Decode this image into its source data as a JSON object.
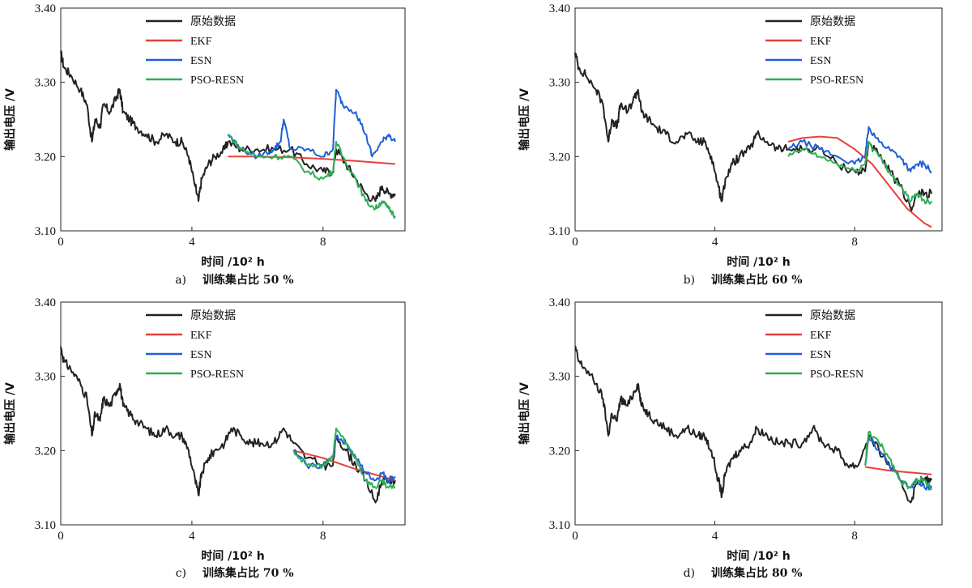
{
  "chart_data": [
    {
      "type": "line",
      "panel_letter": "a)",
      "caption": "训练集占比 50 %",
      "xlabel": "时间 /10² h",
      "ylabel": "输出电压 /V",
      "xlim": [
        0,
        10.5
      ],
      "ylim": [
        3.1,
        3.4
      ],
      "xticks": [
        {
          "v": 0,
          "label": "0"
        },
        {
          "v": 4,
          "label": "4"
        },
        {
          "v": 8,
          "label": "8"
        }
      ],
      "yticks": [
        {
          "v": 3.1,
          "label": "3.10"
        },
        {
          "v": 3.2,
          "label": "3.20"
        },
        {
          "v": 3.3,
          "label": "3.30"
        },
        {
          "v": 3.4,
          "label": "3.40"
        }
      ],
      "legend_position": "top-left",
      "series": [
        {
          "name": "原始数据",
          "color": "#222222",
          "x": [
            0,
            0.1,
            0.3,
            0.6,
            0.8,
            0.95,
            1.05,
            1.2,
            1.3,
            1.5,
            1.7,
            1.8,
            1.9,
            2.1,
            2.3,
            2.6,
            2.9,
            3.2,
            3.5,
            3.7,
            3.9,
            4.1,
            4.2,
            4.3,
            4.5,
            4.7,
            5.0,
            5.1
          ],
          "y": [
            3.34,
            3.32,
            3.31,
            3.29,
            3.27,
            3.22,
            3.25,
            3.24,
            3.27,
            3.26,
            3.28,
            3.29,
            3.26,
            3.25,
            3.24,
            3.23,
            3.22,
            3.23,
            3.22,
            3.22,
            3.2,
            3.16,
            3.14,
            3.17,
            3.19,
            3.2,
            3.21,
            3.22
          ]
        },
        {
          "name": "EKF",
          "color": "#e8403a",
          "x": [
            5.1,
            6.0,
            7.0,
            8.0,
            9.0,
            10.2
          ],
          "y": [
            3.2,
            3.2,
            3.199,
            3.197,
            3.194,
            3.19
          ]
        },
        {
          "name": "ESN",
          "color": "#1f5fd6",
          "x": [
            5.1,
            5.5,
            6.0,
            6.5,
            6.7,
            6.8,
            7.0,
            7.5,
            8.0,
            8.3,
            8.4,
            8.6,
            9.0,
            9.3,
            9.5,
            9.8,
            10.0,
            10.2
          ],
          "y": [
            3.23,
            3.21,
            3.2,
            3.21,
            3.22,
            3.25,
            3.21,
            3.21,
            3.2,
            3.21,
            3.29,
            3.27,
            3.26,
            3.23,
            3.2,
            3.22,
            3.23,
            3.22
          ]
        },
        {
          "name": "PSO-RESN",
          "color": "#2fae55",
          "x": [
            5.1,
            5.5,
            6.0,
            6.5,
            7.0,
            7.5,
            8.0,
            8.3,
            8.4,
            8.6,
            9.0,
            9.3,
            9.6,
            9.8,
            10.0,
            10.2
          ],
          "y": [
            3.23,
            3.21,
            3.2,
            3.2,
            3.2,
            3.18,
            3.17,
            3.18,
            3.22,
            3.2,
            3.17,
            3.14,
            3.13,
            3.14,
            3.13,
            3.12
          ]
        }
      ],
      "raw_tail": {
        "x": [
          5.1,
          5.5,
          6.0,
          6.5,
          7.0,
          7.5,
          8.0,
          8.3,
          8.4,
          8.7,
          9.0,
          9.3,
          9.6,
          9.8,
          10.0,
          10.2
        ],
        "y": [
          3.23,
          3.21,
          3.21,
          3.21,
          3.21,
          3.19,
          3.18,
          3.18,
          3.21,
          3.19,
          3.17,
          3.15,
          3.14,
          3.16,
          3.15,
          3.15
        ]
      }
    },
    {
      "type": "line",
      "panel_letter": "b)",
      "caption": "训练集占比 60 %",
      "xlabel": "时间 /10² h",
      "ylabel": "输出电压 /V",
      "xlim": [
        0,
        10.5
      ],
      "ylim": [
        3.1,
        3.4
      ],
      "xticks": [
        {
          "v": 0,
          "label": "0"
        },
        {
          "v": 4,
          "label": "4"
        },
        {
          "v": 8,
          "label": "8"
        }
      ],
      "yticks": [
        {
          "v": 3.1,
          "label": "3.10"
        },
        {
          "v": 3.2,
          "label": "3.20"
        },
        {
          "v": 3.3,
          "label": "3.30"
        },
        {
          "v": 3.4,
          "label": "3.40"
        }
      ],
      "legend_position": "top-right",
      "series": [
        {
          "name": "原始数据",
          "color": "#222222",
          "x": [
            0,
            0.1,
            0.3,
            0.6,
            0.8,
            0.95,
            1.05,
            1.2,
            1.3,
            1.5,
            1.7,
            1.8,
            1.9,
            2.1,
            2.3,
            2.6,
            2.9,
            3.2,
            3.5,
            3.7,
            3.9,
            4.1,
            4.2,
            4.3,
            4.5,
            4.7,
            5.0,
            5.2,
            5.5,
            5.8,
            6.1
          ],
          "y": [
            3.34,
            3.32,
            3.31,
            3.29,
            3.27,
            3.22,
            3.25,
            3.24,
            3.27,
            3.26,
            3.28,
            3.29,
            3.26,
            3.25,
            3.24,
            3.23,
            3.22,
            3.23,
            3.22,
            3.22,
            3.2,
            3.16,
            3.14,
            3.17,
            3.19,
            3.2,
            3.21,
            3.23,
            3.22,
            3.21,
            3.21
          ]
        },
        {
          "name": "EKF",
          "color": "#e8403a",
          "x": [
            6.1,
            6.5,
            7.0,
            7.5,
            8.0,
            8.5,
            9.0,
            9.5,
            10.0,
            10.2
          ],
          "y": [
            3.22,
            3.225,
            3.227,
            3.225,
            3.21,
            3.19,
            3.16,
            3.13,
            3.11,
            3.105
          ]
        },
        {
          "name": "ESN",
          "color": "#1f5fd6",
          "x": [
            6.1,
            6.5,
            7.0,
            7.5,
            8.0,
            8.3,
            8.4,
            8.7,
            9.0,
            9.3,
            9.6,
            9.8,
            10.0,
            10.2
          ],
          "y": [
            3.21,
            3.22,
            3.21,
            3.2,
            3.19,
            3.2,
            3.24,
            3.22,
            3.21,
            3.2,
            3.18,
            3.19,
            3.19,
            3.18
          ]
        },
        {
          "name": "PSO-RESN",
          "color": "#2fae55",
          "x": [
            6.1,
            6.5,
            7.0,
            7.5,
            8.0,
            8.3,
            8.4,
            8.7,
            9.0,
            9.3,
            9.6,
            9.8,
            10.0,
            10.2
          ],
          "y": [
            3.2,
            3.21,
            3.2,
            3.19,
            3.18,
            3.19,
            3.22,
            3.2,
            3.18,
            3.16,
            3.14,
            3.15,
            3.14,
            3.14
          ]
        }
      ],
      "raw_tail": {
        "x": [
          6.1,
          6.5,
          7.0,
          7.5,
          8.0,
          8.3,
          8.4,
          8.7,
          9.0,
          9.3,
          9.6,
          9.8,
          10.0,
          10.2
        ],
        "y": [
          3.21,
          3.21,
          3.21,
          3.19,
          3.18,
          3.18,
          3.22,
          3.2,
          3.18,
          3.16,
          3.13,
          3.15,
          3.15,
          3.15
        ]
      }
    },
    {
      "type": "line",
      "panel_letter": "c)",
      "caption": "训练集占比 70 %",
      "xlabel": "时间 /10² h",
      "ylabel": "输出电压 /V",
      "xlim": [
        0,
        10.5
      ],
      "ylim": [
        3.1,
        3.4
      ],
      "xticks": [
        {
          "v": 0,
          "label": "0"
        },
        {
          "v": 4,
          "label": "4"
        },
        {
          "v": 8,
          "label": "8"
        }
      ],
      "yticks": [
        {
          "v": 3.1,
          "label": "3.10"
        },
        {
          "v": 3.2,
          "label": "3.20"
        },
        {
          "v": 3.3,
          "label": "3.30"
        },
        {
          "v": 3.4,
          "label": "3.40"
        }
      ],
      "legend_position": "top-left",
      "series": [
        {
          "name": "原始数据",
          "color": "#222222",
          "x": [
            0,
            0.1,
            0.3,
            0.6,
            0.8,
            0.95,
            1.05,
            1.2,
            1.3,
            1.5,
            1.7,
            1.8,
            1.9,
            2.1,
            2.3,
            2.6,
            2.9,
            3.2,
            3.5,
            3.7,
            3.9,
            4.1,
            4.2,
            4.3,
            4.5,
            4.7,
            5.0,
            5.2,
            5.5,
            5.8,
            6.1,
            6.5,
            6.8,
            7.1
          ],
          "y": [
            3.34,
            3.32,
            3.31,
            3.29,
            3.27,
            3.22,
            3.25,
            3.24,
            3.27,
            3.26,
            3.28,
            3.29,
            3.26,
            3.25,
            3.24,
            3.23,
            3.22,
            3.23,
            3.22,
            3.22,
            3.2,
            3.16,
            3.14,
            3.17,
            3.19,
            3.2,
            3.21,
            3.23,
            3.22,
            3.21,
            3.21,
            3.21,
            3.23,
            3.21
          ]
        },
        {
          "name": "EKF",
          "color": "#e8403a",
          "x": [
            7.1,
            8.0,
            9.0,
            10.2
          ],
          "y": [
            3.2,
            3.19,
            3.175,
            3.16
          ]
        },
        {
          "name": "ESN",
          "color": "#1f5fd6",
          "x": [
            7.1,
            7.5,
            8.0,
            8.3,
            8.4,
            8.7,
            9.0,
            9.3,
            9.6,
            9.8,
            10.0,
            10.2
          ],
          "y": [
            3.2,
            3.18,
            3.18,
            3.19,
            3.22,
            3.21,
            3.19,
            3.17,
            3.16,
            3.17,
            3.16,
            3.165
          ]
        },
        {
          "name": "PSO-RESN",
          "color": "#2fae55",
          "x": [
            7.1,
            7.5,
            8.0,
            8.3,
            8.4,
            8.7,
            9.0,
            9.3,
            9.6,
            9.8,
            10.0,
            10.2
          ],
          "y": [
            3.2,
            3.18,
            3.18,
            3.19,
            3.23,
            3.21,
            3.19,
            3.16,
            3.15,
            3.16,
            3.15,
            3.15
          ]
        }
      ],
      "raw_tail": {
        "x": [
          7.1,
          7.5,
          8.0,
          8.3,
          8.4,
          8.7,
          9.0,
          9.3,
          9.6,
          9.8,
          10.0,
          10.2
        ],
        "y": [
          3.2,
          3.19,
          3.18,
          3.18,
          3.22,
          3.2,
          3.18,
          3.16,
          3.13,
          3.16,
          3.16,
          3.16
        ]
      }
    },
    {
      "type": "line",
      "panel_letter": "d)",
      "caption": "训练集占比 80 %",
      "xlabel": "时间 /10² h",
      "ylabel": "输出电压 /V",
      "xlim": [
        0,
        10.5
      ],
      "ylim": [
        3.1,
        3.4
      ],
      "xticks": [
        {
          "v": 0,
          "label": "0"
        },
        {
          "v": 4,
          "label": "4"
        },
        {
          "v": 8,
          "label": "8"
        }
      ],
      "yticks": [
        {
          "v": 3.1,
          "label": "3.10"
        },
        {
          "v": 3.2,
          "label": "3.20"
        },
        {
          "v": 3.3,
          "label": "3.30"
        },
        {
          "v": 3.4,
          "label": "3.40"
        }
      ],
      "legend_position": "top-right",
      "series": [
        {
          "name": "原始数据",
          "color": "#222222",
          "x": [
            0,
            0.1,
            0.3,
            0.6,
            0.8,
            0.95,
            1.05,
            1.2,
            1.3,
            1.5,
            1.7,
            1.8,
            1.9,
            2.1,
            2.3,
            2.6,
            2.9,
            3.2,
            3.5,
            3.7,
            3.9,
            4.1,
            4.2,
            4.3,
            4.5,
            4.7,
            5.0,
            5.2,
            5.5,
            5.8,
            6.1,
            6.5,
            6.8,
            7.1,
            7.5,
            7.8,
            8.1
          ],
          "y": [
            3.34,
            3.32,
            3.31,
            3.29,
            3.27,
            3.22,
            3.25,
            3.24,
            3.27,
            3.26,
            3.28,
            3.29,
            3.26,
            3.25,
            3.24,
            3.23,
            3.22,
            3.23,
            3.22,
            3.22,
            3.2,
            3.16,
            3.14,
            3.17,
            3.19,
            3.2,
            3.21,
            3.23,
            3.22,
            3.21,
            3.21,
            3.21,
            3.23,
            3.21,
            3.2,
            3.18,
            3.18
          ]
        },
        {
          "name": "EKF",
          "color": "#e8403a",
          "x": [
            8.3,
            9.0,
            10.2
          ],
          "y": [
            3.178,
            3.173,
            3.168
          ]
        },
        {
          "name": "ESN",
          "color": "#1f5fd6",
          "x": [
            8.3,
            8.4,
            8.7,
            9.0,
            9.3,
            9.6,
            9.8,
            10.0,
            10.2
          ],
          "y": [
            3.18,
            3.22,
            3.2,
            3.18,
            3.16,
            3.15,
            3.16,
            3.15,
            3.15
          ]
        },
        {
          "name": "PSO-RESN",
          "color": "#2fae55",
          "x": [
            8.3,
            8.4,
            8.7,
            9.0,
            9.3,
            9.6,
            9.8,
            10.0,
            10.2
          ],
          "y": [
            3.18,
            3.225,
            3.21,
            3.19,
            3.16,
            3.15,
            3.16,
            3.16,
            3.15
          ]
        }
      ],
      "raw_tail": {
        "x": [
          8.3,
          8.4,
          8.7,
          9.0,
          9.3,
          9.6,
          9.8,
          10.0,
          10.2
        ],
        "y": [
          3.18,
          3.22,
          3.2,
          3.18,
          3.16,
          3.13,
          3.16,
          3.16,
          3.16
        ]
      }
    }
  ]
}
